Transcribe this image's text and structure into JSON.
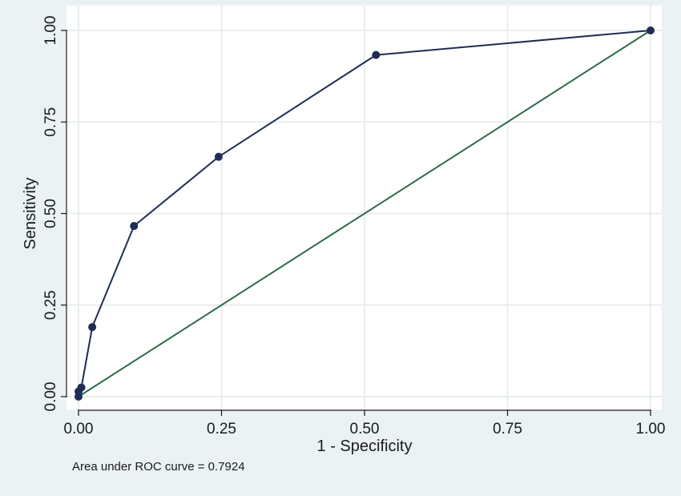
{
  "chart_data": {
    "type": "line",
    "xlabel": "1 - Specificity",
    "ylabel": "Sensitivity",
    "xlim": [
      0,
      1
    ],
    "ylim": [
      0,
      1
    ],
    "x_ticks": [
      "0.00",
      "0.25",
      "0.50",
      "0.75",
      "1.00"
    ],
    "y_ticks": [
      "0.00",
      "0.25",
      "0.50",
      "0.75",
      "1.00"
    ],
    "grid": true,
    "series": [
      {
        "x": [
          0,
          0,
          0.005,
          0.024,
          0.097,
          0.245,
          0.52,
          1
        ],
        "y": [
          0,
          0.014,
          0.025,
          0.19,
          0.466,
          0.655,
          0.933,
          1
        ],
        "color": "#1f2d55",
        "markers": true
      },
      {
        "x": [
          0,
          1
        ],
        "y": [
          0,
          1
        ],
        "color": "#2e6b4a",
        "markers": false
      }
    ],
    "annotation": "Area under ROC curve = 0.7924"
  },
  "colors": {
    "background": "#eaf2f3",
    "plot_area": "#ffffff",
    "grid": "#e8eef0",
    "roc_line": "#1f2d55",
    "reference_line": "#2e6b4a"
  }
}
